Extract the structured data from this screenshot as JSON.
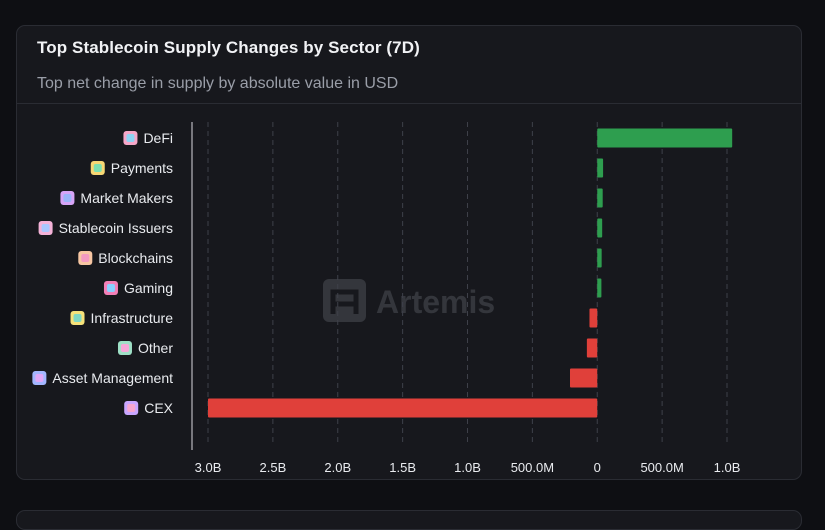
{
  "card": {
    "title": "Top Stablecoin Supply Changes by Sector (7D)",
    "subtitle": "Top net change in supply by absolute value in USD"
  },
  "watermark": {
    "text": "Artemis"
  },
  "colors": {
    "positive": "#2e9e4f",
    "negative": "#e0403a",
    "grid": "#3e4049",
    "axis": "#d8d9de",
    "text": "#e9ebef"
  },
  "chart_data": {
    "type": "bar",
    "orientation": "horizontal",
    "categories": [
      "DeFi",
      "Payments",
      "Market Makers",
      "Stablecoin Issuers",
      "Blockchains",
      "Gaming",
      "Infrastructure",
      "Other",
      "Asset Management",
      "CEX"
    ],
    "category_icons": [
      "defi-icon",
      "payments-icon",
      "market-makers-icon",
      "stablecoin-issuers-icon",
      "blockchains-icon",
      "gaming-icon",
      "infrastructure-icon",
      "other-icon",
      "asset-management-icon",
      "cex-icon"
    ],
    "values": [
      1040000000,
      45000000,
      42000000,
      38000000,
      34000000,
      32000000,
      -60000000,
      -80000000,
      -210000000,
      -3000000000
    ],
    "xlim": [
      -3000000000,
      1000000000
    ],
    "ticks": [
      {
        "value": -3000000000,
        "label": "3.0B"
      },
      {
        "value": -2500000000,
        "label": "2.5B"
      },
      {
        "value": -2000000000,
        "label": "2.0B"
      },
      {
        "value": -1500000000,
        "label": "1.5B"
      },
      {
        "value": -1000000000,
        "label": "1.0B"
      },
      {
        "value": -500000000,
        "label": "500.0M"
      },
      {
        "value": 0,
        "label": "0"
      },
      {
        "value": 500000000,
        "label": "500.0M"
      },
      {
        "value": 1000000000,
        "label": "1.0B"
      }
    ],
    "grid": true,
    "legend": "none"
  }
}
